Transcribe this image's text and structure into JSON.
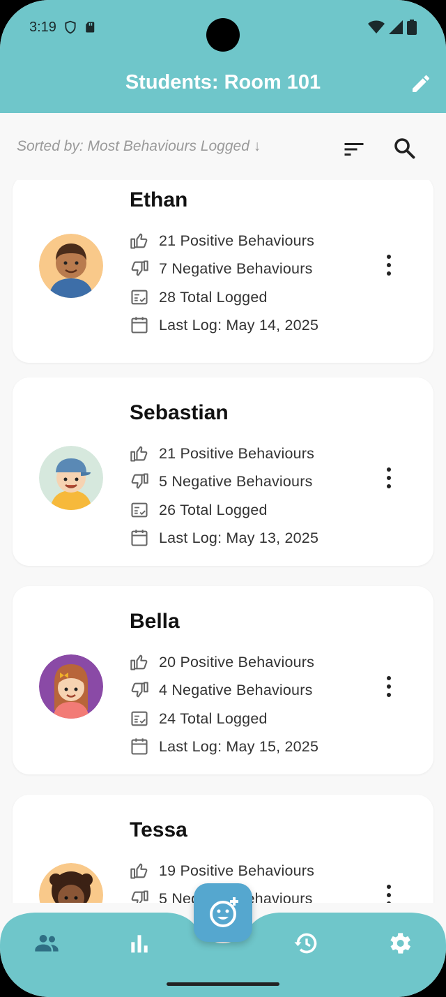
{
  "status_bar": {
    "time": "3:19"
  },
  "header": {
    "title": "Students: Room 101"
  },
  "sort": {
    "label": "Sorted by: Most Behaviours Logged ↓"
  },
  "students": [
    {
      "name": "Ethan",
      "positive": "21 Positive Behaviours",
      "negative": "7 Negative Behaviours",
      "total": "28 Total Logged",
      "last_log": "Last Log: May 14, 2025"
    },
    {
      "name": "Sebastian",
      "positive": "21 Positive Behaviours",
      "negative": "5 Negative Behaviours",
      "total": "26 Total Logged",
      "last_log": "Last Log: May 13, 2025"
    },
    {
      "name": "Bella",
      "positive": "20 Positive Behaviours",
      "negative": "4 Negative Behaviours",
      "total": "24 Total Logged",
      "last_log": "Last Log: May 15, 2025"
    },
    {
      "name": "Tessa",
      "positive": "19 Positive Behaviours",
      "negative": "5 Negative Behaviours",
      "total": "",
      "last_log": ""
    }
  ],
  "colors": {
    "header": "#6fc6ca",
    "fab": "#55a7cf",
    "nav_active": "#2f6f84",
    "nav_icon": "#ffffff"
  },
  "nav": [
    "students-icon",
    "chart-icon",
    "history-icon",
    "settings-icon"
  ]
}
